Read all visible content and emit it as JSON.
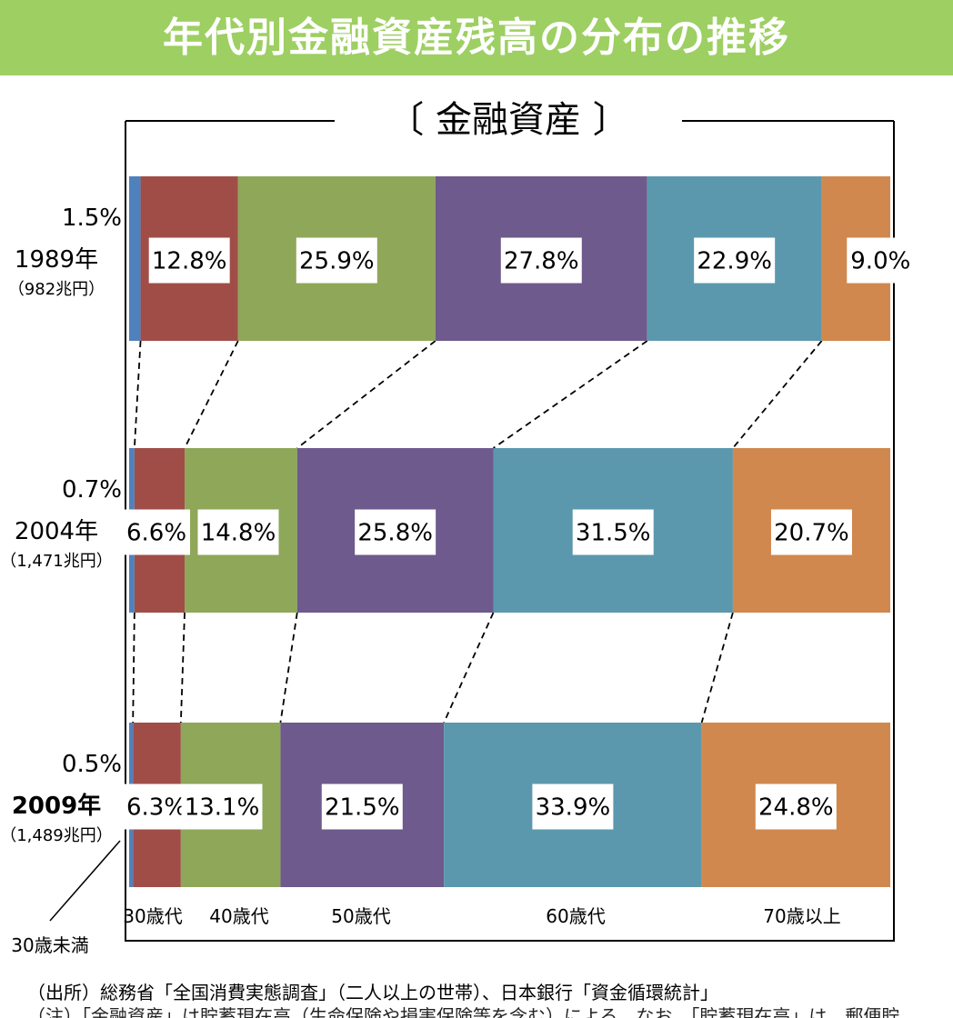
{
  "title": "年代別金融資産残高の分布の推移",
  "chart_data": {
    "type": "bar",
    "orientation": "horizontal",
    "stacked": true,
    "percent": true,
    "subtitle": "〔 金融資産 〕",
    "categories": [
      {
        "year": "1989年",
        "total": "（982兆円）"
      },
      {
        "year": "2004年",
        "total": "（1,471兆円）"
      },
      {
        "year": "2009年",
        "total": "（1,489兆円）"
      }
    ],
    "series": [
      {
        "name": "30歳未満",
        "color": "#4f81bd",
        "values": [
          1.5,
          0.7,
          0.5
        ]
      },
      {
        "name": "30歳代",
        "color": "#a04d48",
        "values": [
          12.8,
          6.6,
          6.3
        ]
      },
      {
        "name": "40歳代",
        "color": "#8ea759",
        "values": [
          25.9,
          14.8,
          13.1
        ]
      },
      {
        "name": "50歳代",
        "color": "#6e5a8c",
        "values": [
          27.8,
          25.8,
          21.5
        ]
      },
      {
        "name": "60歳代",
        "color": "#5b98ad",
        "values": [
          22.9,
          31.5,
          33.9
        ]
      },
      {
        "name": "70歳以上",
        "color": "#d0884e",
        "values": [
          9.0,
          20.7,
          24.8
        ]
      }
    ],
    "value_labels": [
      [
        "1.5%",
        "12.8%",
        "25.9%",
        "27.8%",
        "22.9%",
        "9.0%"
      ],
      [
        "0.7%",
        "6.6%",
        "14.8%",
        "25.8%",
        "31.5%",
        "20.7%"
      ],
      [
        "0.5%",
        "6.3%",
        "13.1%",
        "21.5%",
        "33.9%",
        "24.8%"
      ]
    ],
    "connectors": "dashed"
  },
  "source_note": "（出所）総務省「全国消費実態調査」（二人以上の世帯）、日本銀行「資金循環統計」",
  "cut_note": "（注）「金融資産」は貯蓄現在高（生命保険や損害保険等を含む）による。なお、「貯蓄現在高」は、郵便貯"
}
